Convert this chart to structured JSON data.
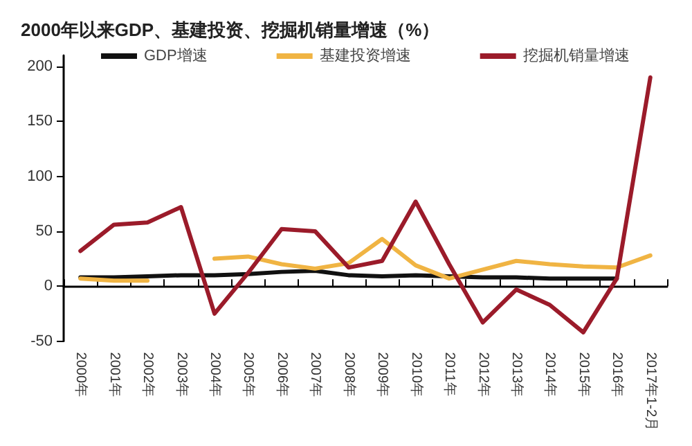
{
  "chart_data": {
    "type": "line",
    "title": "2000年以来GDP、基建投资、挖掘机销量增速（%）",
    "categories": [
      "2000年",
      "2001年",
      "2002年",
      "2003年",
      "2004年",
      "2005年",
      "2006年",
      "2007年",
      "2008年",
      "2009年",
      "2010年",
      "2011年",
      "2012年",
      "2013年",
      "2014年",
      "2015年",
      "2016年",
      "2017年1-2月"
    ],
    "series": [
      {
        "name": "GDP增速",
        "color": "#111111",
        "values": [
          8,
          8,
          9,
          10,
          10,
          11,
          13,
          14,
          10,
          9,
          10,
          9,
          8,
          8,
          7,
          7,
          7,
          null
        ]
      },
      {
        "name": "基建投资增速",
        "color": "#f0b443",
        "values": [
          7,
          5,
          5,
          null,
          25,
          27,
          20,
          16,
          21,
          43,
          19,
          7,
          15,
          23,
          20,
          18,
          17,
          28
        ]
      },
      {
        "name": "挖掘机销量增速",
        "color": "#9b1b2a",
        "values": [
          32,
          56,
          58,
          72,
          -25,
          12,
          52,
          50,
          17,
          23,
          77,
          20,
          -33,
          -3,
          -17,
          -42,
          7,
          190
        ]
      }
    ],
    "ylim": [
      -50,
      210
    ],
    "yticks": [
      -50,
      0,
      50,
      100,
      150,
      200
    ],
    "legend": "top",
    "marker": "none",
    "line_style": "solid"
  }
}
